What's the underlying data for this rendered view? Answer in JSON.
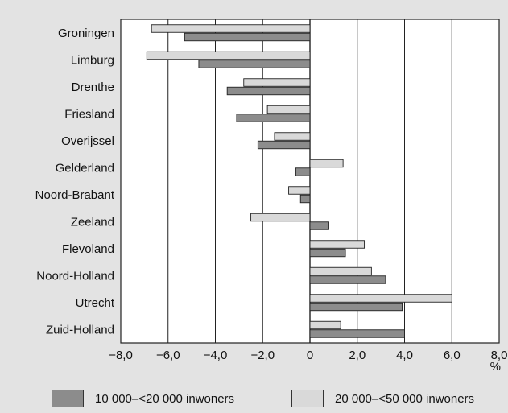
{
  "chart_data": {
    "type": "bar",
    "orientation": "horizontal",
    "categories": [
      "Groningen",
      "Limburg",
      "Drenthe",
      "Friesland",
      "Overijssel",
      "Gelderland",
      "Noord-Brabant",
      "Zeeland",
      "Flevoland",
      "Noord-Holland",
      "Utrecht",
      "Zuid-Holland"
    ],
    "series": [
      {
        "name": "10 000–<20 000 inwoners",
        "color": "#8c8c8c",
        "values": [
          -5.3,
          -4.7,
          -3.5,
          -3.1,
          -2.2,
          -0.6,
          -0.4,
          0.8,
          1.5,
          3.2,
          3.9,
          4.0
        ]
      },
      {
        "name": "20 000–<50 000 inwoners",
        "color": "#d9d9d9",
        "values": [
          -6.7,
          -6.9,
          -2.8,
          -1.8,
          -1.5,
          1.4,
          -0.9,
          -2.5,
          2.3,
          2.6,
          6.0,
          1.3
        ]
      }
    ],
    "xlim": [
      -8.0,
      8.0
    ],
    "xticks": [
      -8.0,
      -6.0,
      -4.0,
      -2.0,
      0,
      2.0,
      4.0,
      6.0,
      8.0
    ],
    "xtick_labels": [
      "−8,0",
      "−6,0",
      "−4,0",
      "−2,0",
      "0",
      "2,0",
      "4,0",
      "6,0",
      "8,0"
    ],
    "xunit": "%",
    "grid": "vertical",
    "legend_position": "bottom"
  }
}
